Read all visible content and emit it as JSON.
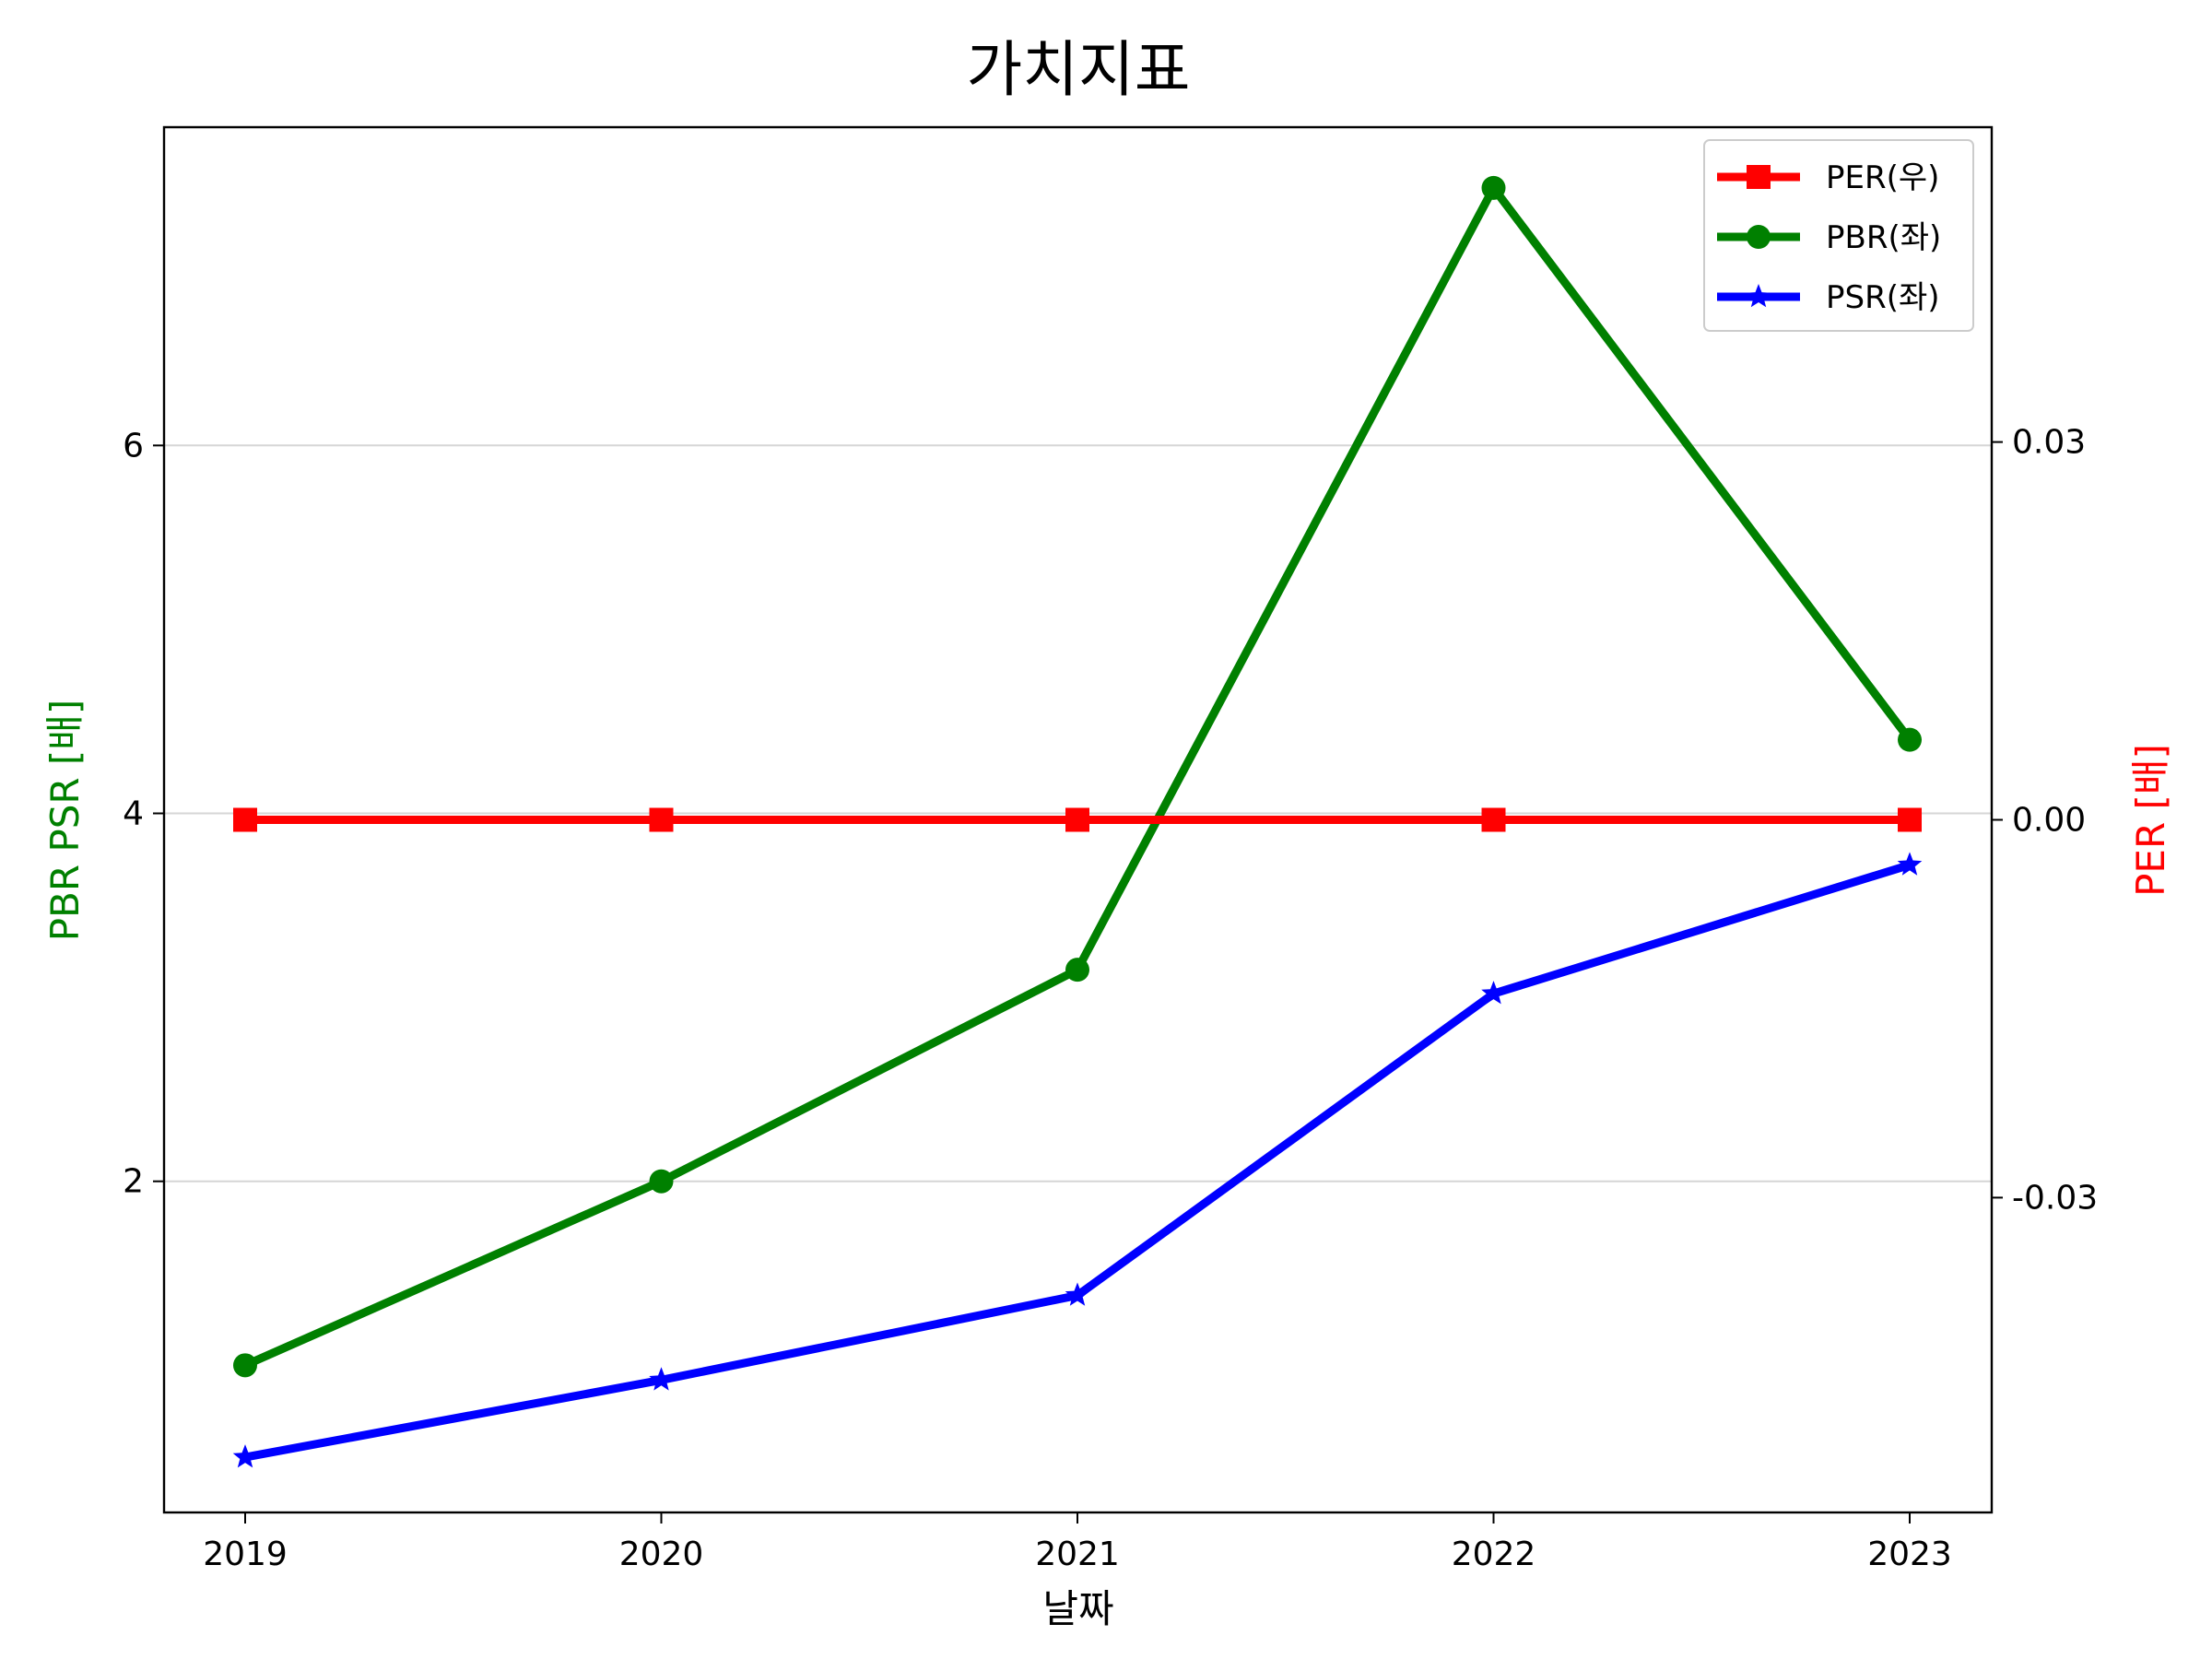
{
  "chart_data": {
    "type": "line",
    "title": "가치지표",
    "xlabel": "날짜",
    "ylabel_left": "PBR PSR [배]",
    "ylabel_right": "PER [배]",
    "ylabel_left_color": "#008000",
    "ylabel_right_color": "#ff0000",
    "categories": [
      "2019",
      "2020",
      "2021",
      "2022",
      "2023"
    ],
    "left_axis": {
      "ylim": [
        0.2,
        7.73
      ],
      "ticks": [
        2,
        4,
        6
      ],
      "tick_labels": [
        "2",
        "4",
        "6"
      ],
      "grid": true
    },
    "right_axis": {
      "ylim": [
        -0.055,
        0.055
      ],
      "ticks": [
        -0.03,
        0.0,
        0.03
      ],
      "tick_labels": [
        "-0.03",
        "0.00",
        "0.03"
      ]
    },
    "series": [
      {
        "name": "PER(우)",
        "axis": "right",
        "color": "#ff0000",
        "marker": "square",
        "values": [
          0,
          0,
          0,
          0,
          0
        ]
      },
      {
        "name": "PBR(좌)",
        "axis": "left",
        "color": "#008000",
        "marker": "circle",
        "values": [
          1.0,
          2.0,
          3.15,
          7.4,
          4.4
        ]
      },
      {
        "name": "PSR(좌)",
        "axis": "left",
        "color": "#0000ff",
        "marker": "star",
        "values": [
          0.5,
          0.92,
          1.38,
          3.02,
          3.72
        ]
      }
    ],
    "legend_position": "top-right"
  }
}
